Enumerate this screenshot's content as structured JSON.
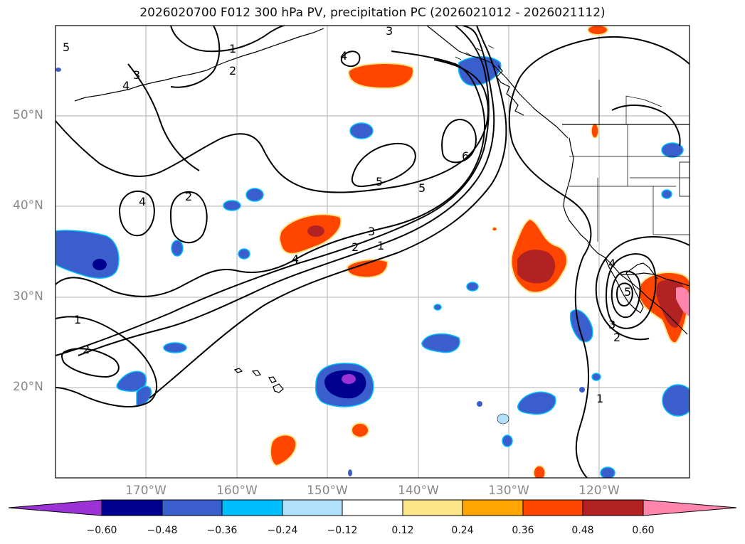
{
  "title": "2026020700 F012 300 hPa PV, precipitation PC (2026021012 - 2026021112)",
  "map": {
    "projection": "PlateCarree",
    "lon_range": [
      -180,
      -110
    ],
    "lat_range": [
      10,
      60
    ],
    "gridlines": true,
    "longitude_labels": [
      "170°W",
      "160°W",
      "150°W",
      "140°W",
      "130°W",
      "120°W"
    ],
    "latitude_labels": [
      "50°N",
      "40°N",
      "30°N",
      "20°N"
    ],
    "contour_variable": "300 hPa PV",
    "contour_labels": [
      "1",
      "2",
      "3",
      "4",
      "5",
      "6"
    ],
    "fill_variable": "precipitation PC"
  },
  "colorbar": {
    "ticks": [
      "−0.60",
      "−0.48",
      "−0.36",
      "−0.24",
      "−0.12",
      "0.12",
      "0.24",
      "0.36",
      "0.48",
      "0.60"
    ],
    "colors": [
      "#9b32d6",
      "#000090",
      "#3a5fcd",
      "#00bfff",
      "#b0e0fa",
      "#ffffff",
      "#fde68a",
      "#ffa500",
      "#ff4500",
      "#b22222",
      "#ff85ad"
    ],
    "extend": "both"
  },
  "colors": {
    "contour": "#000000",
    "grid": "#b0b0b0",
    "coastline": "#000000"
  }
}
